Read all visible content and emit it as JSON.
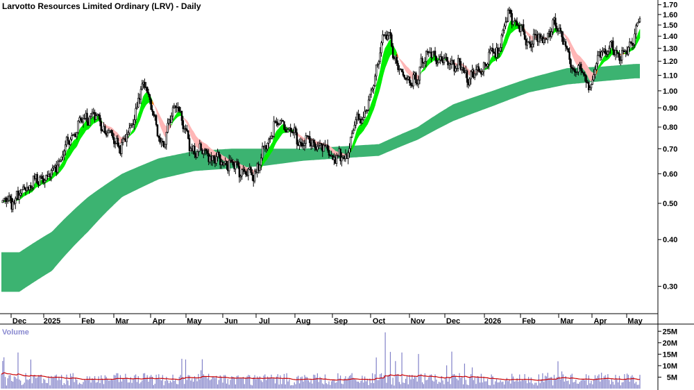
{
  "chart_data": {
    "type": "candlestick",
    "title": "Larvotto Resources Limited Ordinary (LRV) - Daily",
    "x_labels": [
      "Dec",
      "2025",
      "Feb",
      "Mar",
      "Apr",
      "May",
      "Jun",
      "Jul",
      "Aug",
      "Sep",
      "Oct",
      "Nov",
      "Dec",
      "2026",
      "Feb",
      "Mar",
      "Apr",
      "May"
    ],
    "price_axis": {
      "ticks": [
        "1.70",
        "1.60",
        "1.50",
        "1.40",
        "1.30",
        "1.20",
        "1.10",
        "1.00",
        "0.90",
        "0.80",
        "0.70",
        "0.60",
        "0.50",
        "0.40",
        "0.30"
      ],
      "log_scale": true,
      "ylim": [
        0.26,
        1.72
      ]
    },
    "price_anchors": [
      [
        "Dec",
        0.5
      ],
      [
        "2025",
        0.58
      ],
      [
        "Feb",
        0.86
      ],
      [
        "Mar",
        0.72
      ],
      [
        "Apr",
        1.02
      ],
      [
        "Apr",
        0.72
      ],
      [
        "May",
        0.92
      ],
      [
        "May",
        0.7
      ],
      [
        "Jun",
        0.64
      ],
      [
        "Jul",
        0.6
      ],
      [
        "Jul",
        0.82
      ],
      [
        "Aug",
        0.73
      ],
      [
        "Sep",
        0.66
      ],
      [
        "Oct",
        0.85
      ],
      [
        "Oct",
        1.42
      ],
      [
        "Oct",
        1.12
      ],
      [
        "Nov",
        1.05
      ],
      [
        "Nov",
        1.25
      ],
      [
        "Dec",
        1.18
      ],
      [
        "Dec",
        1.1
      ],
      [
        "2026",
        1.25
      ],
      [
        "2026",
        1.6
      ],
      [
        "Feb",
        1.38
      ],
      [
        "Feb",
        1.4
      ],
      [
        "Mar",
        1.5
      ],
      [
        "Mar",
        1.15
      ],
      [
        "Apr",
        1.05
      ],
      [
        "Apr",
        1.3
      ],
      [
        "May",
        1.27
      ],
      [
        "May",
        1.55
      ]
    ],
    "long_term_band": {
      "color": "#3cb371",
      "upper": [
        0.37,
        0.42,
        0.52,
        0.6,
        0.66,
        0.69,
        0.7,
        0.7,
        0.7,
        0.71,
        0.72,
        0.8,
        0.92,
        1.0,
        1.08,
        1.15,
        1.16,
        1.18
      ],
      "lower": [
        0.29,
        0.33,
        0.42,
        0.52,
        0.58,
        0.61,
        0.62,
        0.63,
        0.65,
        0.66,
        0.67,
        0.74,
        0.83,
        0.91,
        0.99,
        1.04,
        1.06,
        1.08
      ]
    },
    "short_term_band": {
      "colors": {
        "bullish": "#00ee00",
        "bearish": "#ff6a1a",
        "bullish_weak": "#ffb6b6"
      }
    },
    "volume": {
      "label": "Volume",
      "ticks": [
        "25M",
        "20M",
        "15M",
        "10M",
        "5M"
      ],
      "ylim": [
        0,
        26
      ],
      "bar_color": "#8080c8",
      "ma_color": "#cc0000",
      "peak_values": [
        [
          "Oct",
          24.5
        ],
        [
          "Oct",
          16
        ],
        [
          "Oct",
          12
        ]
      ],
      "typical_value": 4.5
    },
    "grid": false
  }
}
